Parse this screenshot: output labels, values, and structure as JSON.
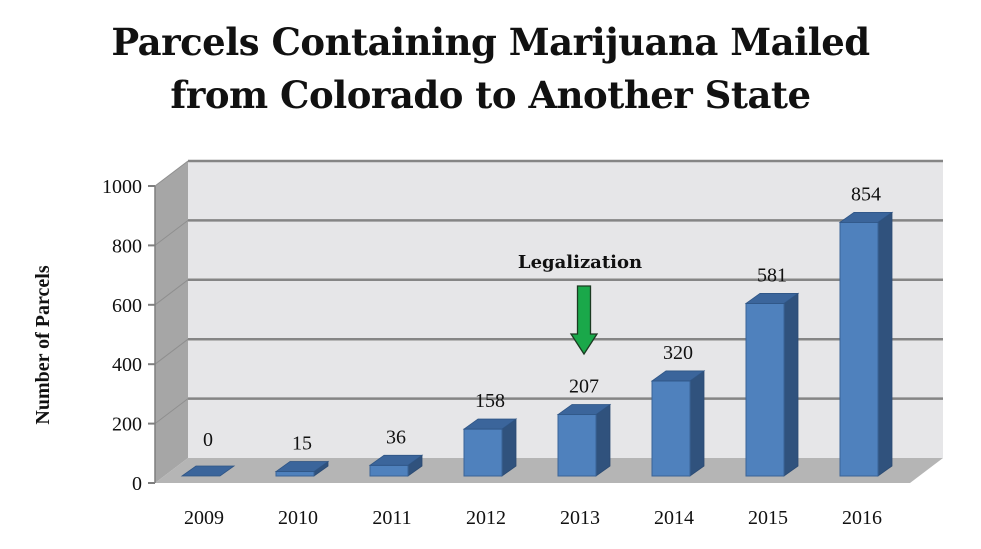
{
  "chart_data": {
    "type": "bar",
    "style": "3d-column",
    "title": "Parcels Containing Marijuana Mailed from Colorado to Another State",
    "title_lines": [
      "Parcels Containing Marijuana Mailed",
      "from Colorado to Another State"
    ],
    "xlabel": "",
    "ylabel": "Number of Parcels",
    "categories": [
      "2009",
      "2010",
      "2011",
      "2012",
      "2013",
      "2014",
      "2015",
      "2016"
    ],
    "values": [
      0,
      15,
      36,
      158,
      207,
      320,
      581,
      854
    ],
    "data_labels": [
      "0",
      "15",
      "36",
      "158",
      "207",
      "320",
      "581",
      "854"
    ],
    "ylim": [
      0,
      1000
    ],
    "yticks": [
      0,
      200,
      400,
      600,
      800,
      1000
    ],
    "ytick_labels": [
      "0",
      "200",
      "400",
      "600",
      "800",
      "1000"
    ],
    "grid": true,
    "legend": null,
    "annotations": [
      {
        "text": "Legalization",
        "category": "2013",
        "type": "down-arrow",
        "color": "#1aa84a"
      }
    ],
    "colors": {
      "bar_front": "#4f81bd",
      "bar_side": "#30527d",
      "bar_top": "#3b659b",
      "wall_back": "#e6e6e8",
      "wall_side": "#a6a6a6",
      "floor": "#b5b5b5",
      "gridline": "#858585",
      "arrow": "#1aa84a"
    }
  }
}
